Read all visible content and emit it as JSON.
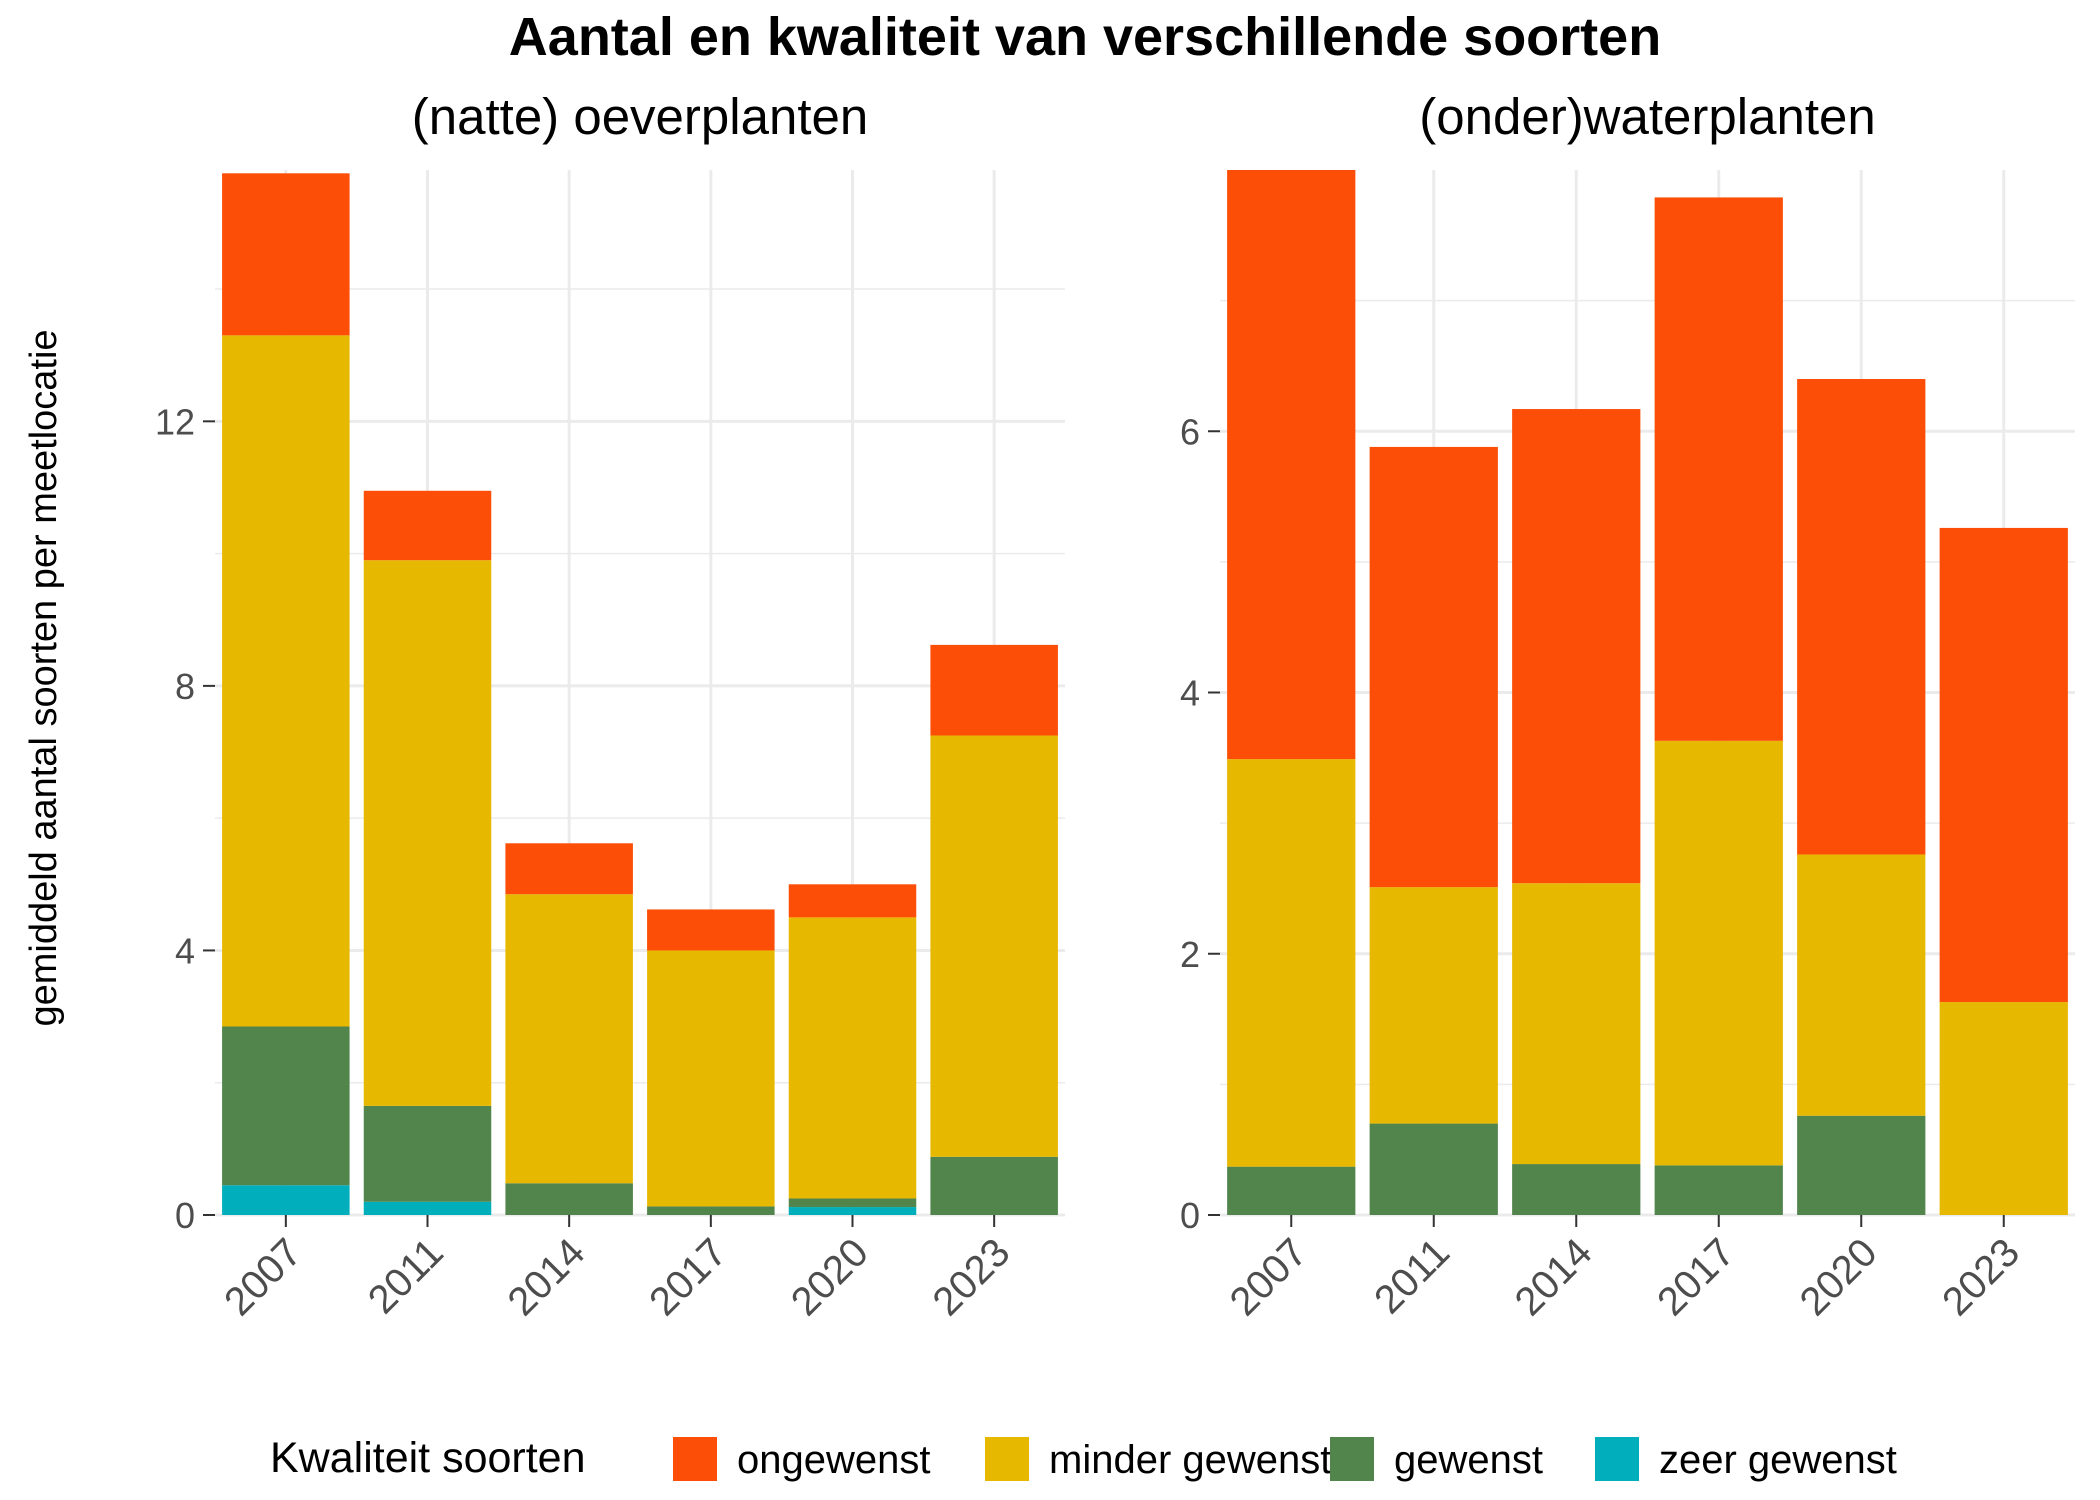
{
  "chart_data": {
    "type": "bar",
    "stacked": true,
    "title": "Aantal en kwaliteit van verschillende soorten",
    "ylabel": "gemiddeld aantal soorten per meetlocatie",
    "legend": {
      "title": "Kwaliteit soorten",
      "position": "bottom",
      "items": [
        {
          "label": "ongewenst",
          "color": "#FC4E07"
        },
        {
          "label": "minder gewenst",
          "color": "#E7B800"
        },
        {
          "label": "gewenst",
          "color": "#52854C"
        },
        {
          "label": "zeer gewenst",
          "color": "#00AFBB"
        }
      ]
    },
    "grid": true,
    "panels": [
      {
        "title": "(natte) oeverplanten",
        "categories": [
          "2007",
          "2011",
          "2014",
          "2017",
          "2020",
          "2023"
        ],
        "ylim": [
          0,
          15.8
        ],
        "yticks": [
          0,
          4,
          8,
          12
        ],
        "series": [
          {
            "name": "zeer gewenst",
            "color": "#00AFBB",
            "values": [
              0.45,
              0.2,
              0.0,
              0.0,
              0.12,
              0.0
            ]
          },
          {
            "name": "gewenst",
            "color": "#52854C",
            "values": [
              2.4,
              1.45,
              0.48,
              0.13,
              0.13,
              0.88
            ]
          },
          {
            "name": "minder gewenst",
            "color": "#E7B800",
            "values": [
              10.45,
              8.25,
              4.37,
              3.87,
              4.25,
              6.37
            ]
          },
          {
            "name": "ongewenst",
            "color": "#FC4E07",
            "values": [
              2.45,
              1.05,
              0.77,
              0.62,
              0.5,
              1.37
            ]
          }
        ]
      },
      {
        "title": "(onder)waterplanten",
        "categories": [
          "2007",
          "2011",
          "2014",
          "2017",
          "2020",
          "2023"
        ],
        "ylim": [
          0,
          8.0
        ],
        "yticks": [
          0,
          2,
          4,
          6
        ],
        "series": [
          {
            "name": "zeer gewenst",
            "color": "#00AFBB",
            "values": [
              0,
              0,
              0,
              0,
              0,
              0
            ]
          },
          {
            "name": "gewenst",
            "color": "#52854C",
            "values": [
              0.37,
              0.7,
              0.39,
              0.38,
              0.76,
              0.0
            ]
          },
          {
            "name": "minder gewenst",
            "color": "#E7B800",
            "values": [
              3.12,
              1.81,
              2.15,
              3.25,
              2.0,
              1.63
            ]
          },
          {
            "name": "ongewenst",
            "color": "#FC4E07",
            "values": [
              4.51,
              3.37,
              3.63,
              4.16,
              3.64,
              3.63
            ]
          }
        ]
      }
    ]
  }
}
